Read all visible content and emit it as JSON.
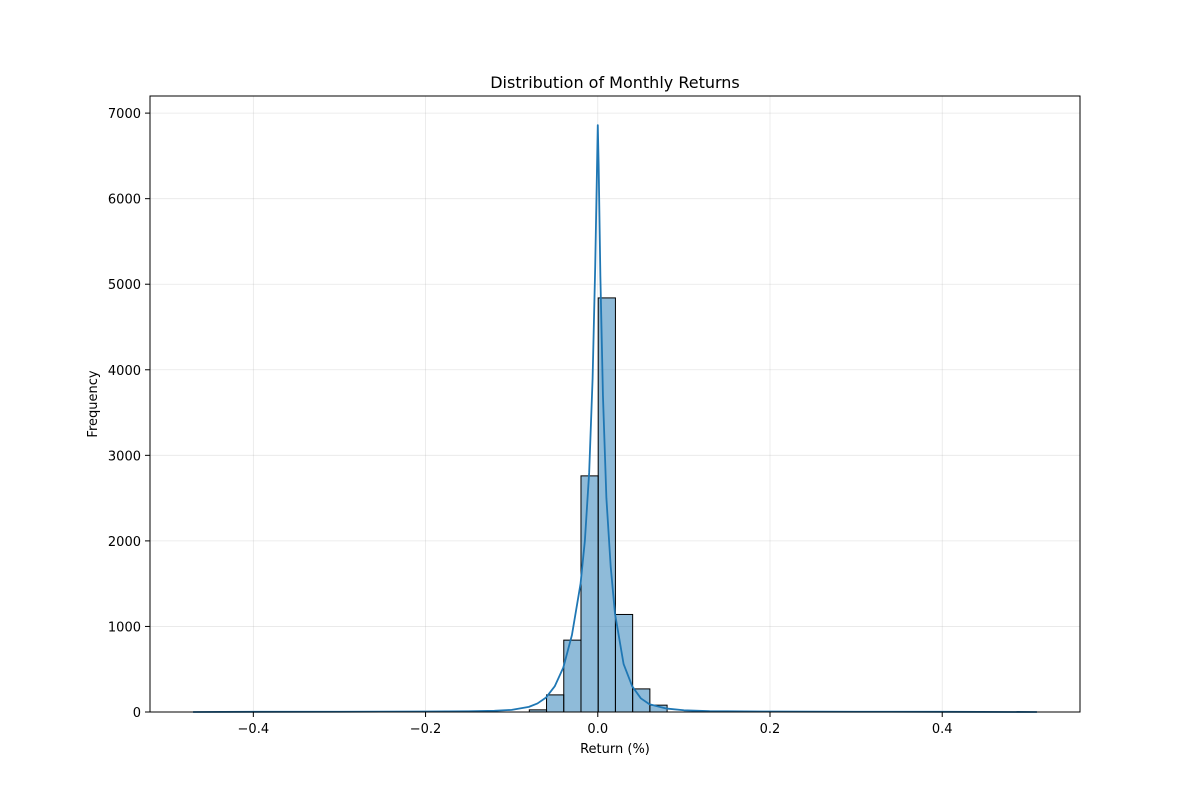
{
  "chart_data": {
    "type": "bar",
    "title": "Distribution of Monthly Returns",
    "xlabel": "Return (%)",
    "ylabel": "Frequency",
    "xlim": [
      -0.52,
      0.56
    ],
    "ylim": [
      0,
      7200
    ],
    "grid": true,
    "legend": "none",
    "x_ticks": [
      -0.4,
      -0.2,
      0.0,
      0.2,
      0.4
    ],
    "x_tick_labels": [
      "−0.4",
      "−0.2",
      "0.0",
      "0.2",
      "0.4"
    ],
    "y_ticks": [
      0,
      1000,
      2000,
      3000,
      4000,
      5000,
      6000,
      7000
    ],
    "y_tick_labels": [
      "0",
      "1000",
      "2000",
      "3000",
      "4000",
      "5000",
      "6000",
      "7000"
    ],
    "histogram": {
      "bin_edges": [
        -0.0795,
        -0.0595,
        -0.0395,
        -0.0195,
        0.0005,
        0.0205,
        0.0405,
        0.0605,
        0.0805
      ],
      "counts": [
        25,
        200,
        840,
        2760,
        4840,
        1140,
        270,
        80
      ],
      "colors": {
        "fill": "#1f77b4",
        "fill_opacity": 0.5,
        "edge": "#000000"
      }
    },
    "kde": {
      "color": "#1f77b4",
      "points": [
        [
          -0.47,
          0
        ],
        [
          -0.4,
          2
        ],
        [
          -0.3,
          3
        ],
        [
          -0.2,
          6
        ],
        [
          -0.15,
          8
        ],
        [
          -0.12,
          15
        ],
        [
          -0.1,
          25
        ],
        [
          -0.08,
          60
        ],
        [
          -0.07,
          100
        ],
        [
          -0.06,
          170
        ],
        [
          -0.05,
          300
        ],
        [
          -0.04,
          520
        ],
        [
          -0.03,
          900
        ],
        [
          -0.02,
          1500
        ],
        [
          -0.015,
          2000
        ],
        [
          -0.01,
          2800
        ],
        [
          -0.006,
          3900
        ],
        [
          -0.003,
          5200
        ],
        [
          -0.001,
          6300
        ],
        [
          0.0,
          6860
        ],
        [
          0.001,
          6400
        ],
        [
          0.003,
          5100
        ],
        [
          0.006,
          3700
        ],
        [
          0.01,
          2500
        ],
        [
          0.015,
          1700
        ],
        [
          0.02,
          1150
        ],
        [
          0.03,
          560
        ],
        [
          0.04,
          300
        ],
        [
          0.05,
          160
        ],
        [
          0.06,
          90
        ],
        [
          0.08,
          40
        ],
        [
          0.1,
          20
        ],
        [
          0.13,
          10
        ],
        [
          0.2,
          5
        ],
        [
          0.3,
          3
        ],
        [
          0.4,
          2
        ],
        [
          0.51,
          0
        ]
      ]
    }
  }
}
